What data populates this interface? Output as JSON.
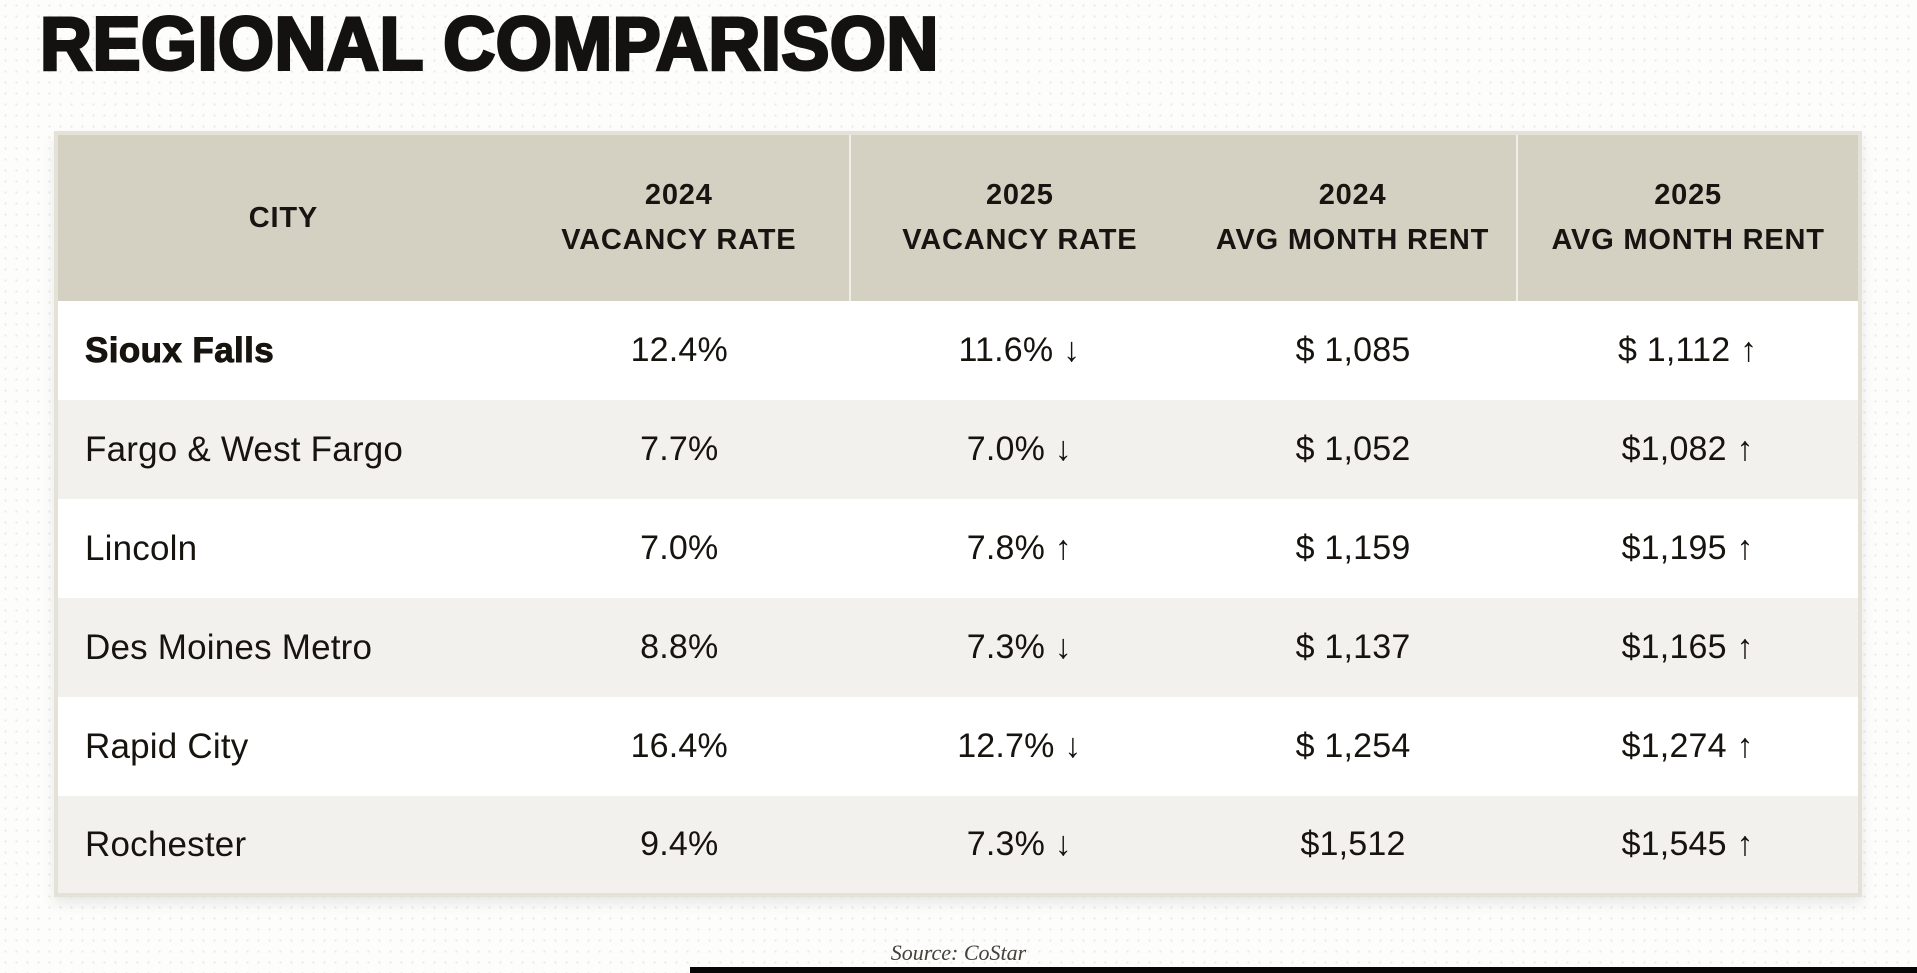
{
  "page": {
    "title": "REGIONAL COMPARISON",
    "source_note": "Source: CoStar"
  },
  "colors": {
    "header_bg": "#d5d1c2",
    "row_alt_bg": "#f2f1ee",
    "table_border": "#e4e1d6",
    "text": "#17140f",
    "source_text": "#45423c",
    "bottom_bar": "#060606"
  },
  "table": {
    "headers": [
      "CITY",
      "2024\nVACANCY RATE",
      "2025\nVACANCY RATE",
      "2024\nAVG MONTH RENT",
      "2025\nAVG MONTH RENT"
    ],
    "rows": [
      {
        "city": "Sioux Falls",
        "vacancy_2024": "12.4%",
        "vacancy_2025": "11.6% ↓",
        "rent_2024": "$ 1,085",
        "rent_2025": "$ 1,112 ↑"
      },
      {
        "city": "Fargo & West Fargo",
        "vacancy_2024": "7.7%",
        "vacancy_2025": "7.0% ↓",
        "rent_2024": "$ 1,052",
        "rent_2025": "$1,082 ↑"
      },
      {
        "city": "Lincoln",
        "vacancy_2024": "7.0%",
        "vacancy_2025": "7.8% ↑",
        "rent_2024": "$ 1,159",
        "rent_2025": "$1,195 ↑"
      },
      {
        "city": "Des Moines Metro",
        "vacancy_2024": "8.8%",
        "vacancy_2025": "7.3% ↓",
        "rent_2024": "$ 1,137",
        "rent_2025": "$1,165 ↑"
      },
      {
        "city": "Rapid City",
        "vacancy_2024": "16.4%",
        "vacancy_2025": "12.7% ↓",
        "rent_2024": "$ 1,254",
        "rent_2025": "$1,274 ↑"
      },
      {
        "city": "Rochester",
        "vacancy_2024": "9.4%",
        "vacancy_2025": "7.3% ↓",
        "rent_2024": "$1,512",
        "rent_2025": "$1,545 ↑"
      }
    ]
  },
  "chart_data": {
    "type": "table",
    "title": "REGIONAL COMPARISON",
    "columns": [
      "CITY",
      "2024 VACANCY RATE",
      "2025 VACANCY RATE",
      "2024 AVG MONTH RENT",
      "2025 AVG MONTH RENT"
    ],
    "rows": [
      {
        "city": "Sioux Falls",
        "vacancy_2024_pct": 12.4,
        "vacancy_2025_pct": 11.6,
        "vacancy_trend": "down",
        "rent_2024_usd": 1085,
        "rent_2025_usd": 1112,
        "rent_trend": "up"
      },
      {
        "city": "Fargo & West Fargo",
        "vacancy_2024_pct": 7.7,
        "vacancy_2025_pct": 7.0,
        "vacancy_trend": "down",
        "rent_2024_usd": 1052,
        "rent_2025_usd": 1082,
        "rent_trend": "up"
      },
      {
        "city": "Lincoln",
        "vacancy_2024_pct": 7.0,
        "vacancy_2025_pct": 7.8,
        "vacancy_trend": "up",
        "rent_2024_usd": 1159,
        "rent_2025_usd": 1195,
        "rent_trend": "up"
      },
      {
        "city": "Des Moines Metro",
        "vacancy_2024_pct": 8.8,
        "vacancy_2025_pct": 7.3,
        "vacancy_trend": "down",
        "rent_2024_usd": 1137,
        "rent_2025_usd": 1165,
        "rent_trend": "up"
      },
      {
        "city": "Rapid City",
        "vacancy_2024_pct": 16.4,
        "vacancy_2025_pct": 12.7,
        "vacancy_trend": "down",
        "rent_2024_usd": 1254,
        "rent_2025_usd": 1274,
        "rent_trend": "up"
      },
      {
        "city": "Rochester",
        "vacancy_2024_pct": 9.4,
        "vacancy_2025_pct": 7.3,
        "vacancy_trend": "down",
        "rent_2024_usd": 1512,
        "rent_2025_usd": 1545,
        "rent_trend": "up"
      }
    ],
    "source": "Source: CoStar",
    "highlighted_row": "Sioux Falls"
  }
}
